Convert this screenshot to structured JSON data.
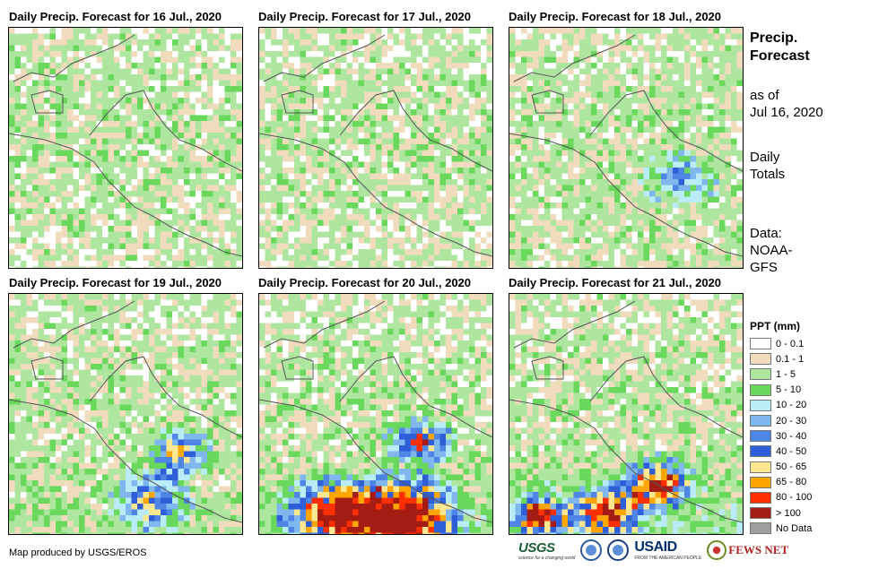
{
  "panels": [
    {
      "title": "Daily Precip. Forecast for 16 Jul., 2020"
    },
    {
      "title": "Daily Precip. Forecast for 17 Jul., 2020"
    },
    {
      "title": "Daily Precip. Forecast for 18 Jul., 2020"
    },
    {
      "title": "Daily Precip. Forecast for 19 Jul., 2020"
    },
    {
      "title": "Daily Precip. Forecast for 20 Jul., 2020"
    },
    {
      "title": "Daily Precip. Forecast for 21 Jul., 2020"
    }
  ],
  "sidebar": {
    "title_line1": "Precip.",
    "title_line2": "Forecast",
    "asof_line1": "as of",
    "asof_line2": "Jul 16, 2020",
    "totals_line1": "Daily",
    "totals_line2": "Totals",
    "data_line1": "Data:",
    "data_line2": "NOAA-",
    "data_line3": "GFS"
  },
  "legend": {
    "title": "PPT (mm)",
    "items": [
      {
        "label": "0 - 0.1",
        "color": "#ffffff"
      },
      {
        "label": "0.1 - 1",
        "color": "#f0dcbc"
      },
      {
        "label": "1 - 5",
        "color": "#aee6a0"
      },
      {
        "label": "5 - 10",
        "color": "#69d85c"
      },
      {
        "label": "10 - 20",
        "color": "#b9ecf6"
      },
      {
        "label": "20 - 30",
        "color": "#7fb7ee"
      },
      {
        "label": "30 - 40",
        "color": "#4f86e6"
      },
      {
        "label": "40 - 50",
        "color": "#2e5fd8"
      },
      {
        "label": "50 - 65",
        "color": "#ffe690"
      },
      {
        "label": "65 - 80",
        "color": "#ffa500"
      },
      {
        "label": "80 - 100",
        "color": "#ff3000"
      },
      {
        "label": "> 100",
        "color": "#a51c14"
      },
      {
        "label": "No Data",
        "color": "#9e9e9e"
      }
    ]
  },
  "credit": "Map produced by USGS/EROS",
  "logos": {
    "usgs": "USGS",
    "usgs_tagline": "science for a changing world",
    "usaid": "USAID",
    "usaid_tagline": "FROM THE AMERICAN PEOPLE",
    "fews": "FEWS NET"
  }
}
